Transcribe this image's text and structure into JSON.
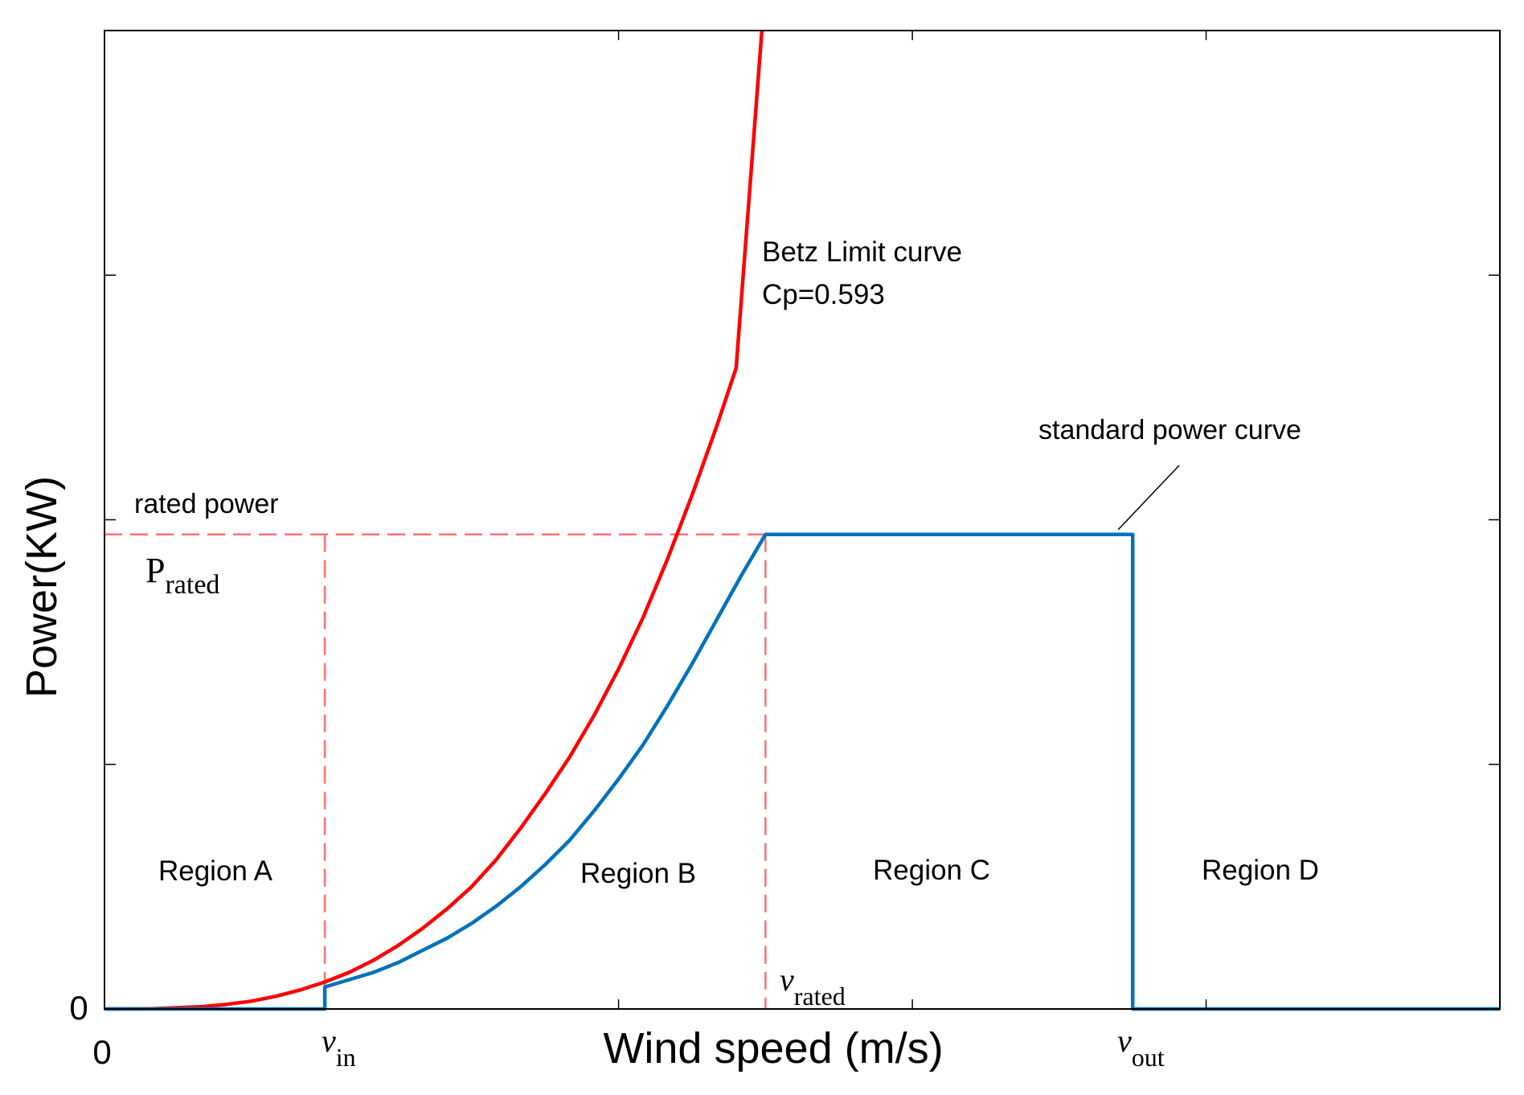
{
  "chart_data": {
    "type": "line",
    "title": "",
    "xlabel": "Wind speed (m/s)",
    "ylabel": "Power(KW)",
    "x_range": [
      0,
      28.5
    ],
    "y_range": [
      0,
      4.0
    ],
    "x_tick_labels": [
      {
        "x": 0,
        "text": "0"
      },
      {
        "x": 4.5,
        "text": "v",
        "sub": "in"
      },
      {
        "x": 21.0,
        "text": "v",
        "sub": "out"
      }
    ],
    "y_tick_labels": [
      {
        "y": 0,
        "text": "0"
      }
    ],
    "x_ticks": [
      0,
      10.5,
      16.5,
      22.5,
      28.5
    ],
    "y_ticks": [
      0,
      1,
      2,
      3,
      4
    ],
    "cut_in_speed": 4.5,
    "rated_speed": 13.5,
    "cut_out_speed": 21.0,
    "rated_power": 1.94,
    "colors": {
      "betz": "#ff0000",
      "standard": "#0072bd",
      "reference": "#ff7070",
      "axis": "#000000"
    },
    "series": [
      {
        "name": "Betz Limit curve",
        "color": "#ff0000",
        "x": [
          0,
          1,
          2,
          2.5,
          3,
          3.5,
          4,
          4.5,
          5,
          5.5,
          6,
          6.5,
          7,
          7.5,
          8,
          8.5,
          9,
          9.5,
          10,
          10.5,
          11,
          11.5,
          12,
          12.5,
          12.9
        ],
        "y": [
          0,
          0.0012,
          0.0096,
          0.019,
          0.032,
          0.052,
          0.078,
          0.11,
          0.15,
          0.2,
          0.26,
          0.33,
          0.41,
          0.5,
          0.61,
          0.74,
          0.88,
          1.03,
          1.2,
          1.39,
          1.6,
          1.84,
          2.1,
          2.38,
          2.62
        ]
      },
      {
        "name": "standard power curve",
        "color": "#0072bd",
        "x": [
          0,
          4.5,
          4.5,
          5,
          5.5,
          6,
          6.5,
          7,
          7.5,
          8,
          8.5,
          9,
          9.5,
          10,
          10.5,
          11,
          11.5,
          12,
          12.5,
          13,
          13.5,
          21.0,
          21.0,
          28.5
        ],
        "y": [
          0,
          0,
          0.09,
          0.12,
          0.15,
          0.19,
          0.24,
          0.29,
          0.35,
          0.42,
          0.5,
          0.59,
          0.69,
          0.81,
          0.94,
          1.08,
          1.24,
          1.41,
          1.59,
          1.77,
          1.94,
          1.94,
          0,
          0
        ]
      }
    ],
    "annotations": {
      "betz_label": "Betz Limit curve",
      "betz_cp": "Cp=0.593",
      "standard_label": "standard power curve",
      "rated_power_label": "rated power",
      "p_rated_main": "P",
      "p_rated_sub": "rated",
      "v_rated_main": "v",
      "v_rated_sub": "rated",
      "region_a": "Region A",
      "region_b": "Region B",
      "region_c": "Region C",
      "region_d": "Region D"
    }
  }
}
